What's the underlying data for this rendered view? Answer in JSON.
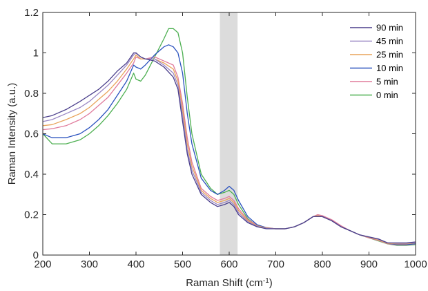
{
  "chart_data": {
    "type": "line",
    "title": "",
    "xlabel": "Raman Shift (cm",
    "xlabel_superscript": "-1",
    "xlabel_suffix": ")",
    "ylabel": "Raman Intensity (a.u.)",
    "xlim": [
      200,
      1000
    ],
    "ylim": [
      0,
      1.2
    ],
    "xticks": [
      "200",
      "300",
      "400",
      "500",
      "600",
      "700",
      "800",
      "900",
      "1000"
    ],
    "yticks": [
      "0",
      "0.2",
      "0.4",
      "0.6",
      "0.8",
      "1",
      "1.2"
    ],
    "grid": false,
    "legend_position": "top-right",
    "shaded_region": {
      "x_start": 580,
      "x_end": 618,
      "color": "#dcdcdc"
    },
    "series": [
      {
        "name": "90 min",
        "color": "#4b3f8c",
        "x": [
          200,
          220,
          250,
          280,
          300,
          320,
          340,
          360,
          380,
          395,
          400,
          410,
          420,
          440,
          460,
          480,
          490,
          500,
          510,
          520,
          540,
          560,
          575,
          590,
          600,
          610,
          620,
          640,
          660,
          680,
          700,
          720,
          740,
          760,
          780,
          790,
          800,
          820,
          840,
          860,
          880,
          900,
          920,
          940,
          960,
          980,
          1000
        ],
        "y": [
          0.68,
          0.69,
          0.72,
          0.76,
          0.79,
          0.82,
          0.86,
          0.91,
          0.95,
          1.0,
          1.0,
          0.98,
          0.97,
          0.96,
          0.93,
          0.88,
          0.82,
          0.66,
          0.5,
          0.4,
          0.3,
          0.26,
          0.24,
          0.25,
          0.26,
          0.24,
          0.2,
          0.16,
          0.14,
          0.13,
          0.13,
          0.13,
          0.14,
          0.16,
          0.19,
          0.19,
          0.19,
          0.17,
          0.14,
          0.12,
          0.1,
          0.09,
          0.08,
          0.06,
          0.06,
          0.06,
          0.065
        ]
      },
      {
        "name": "45 min",
        "color": "#9a87c4",
        "x": [
          200,
          220,
          250,
          280,
          300,
          320,
          340,
          360,
          380,
          395,
          400,
          410,
          420,
          440,
          460,
          480,
          490,
          500,
          510,
          520,
          540,
          560,
          575,
          590,
          600,
          610,
          620,
          640,
          660,
          680,
          700,
          720,
          740,
          760,
          780,
          790,
          800,
          820,
          840,
          860,
          880,
          900,
          920,
          940,
          960,
          980,
          1000
        ],
        "y": [
          0.66,
          0.67,
          0.7,
          0.73,
          0.76,
          0.8,
          0.84,
          0.89,
          0.94,
          0.99,
          1.0,
          0.98,
          0.97,
          0.97,
          0.94,
          0.9,
          0.84,
          0.69,
          0.52,
          0.42,
          0.31,
          0.27,
          0.25,
          0.26,
          0.27,
          0.25,
          0.21,
          0.165,
          0.142,
          0.132,
          0.13,
          0.13,
          0.14,
          0.16,
          0.19,
          0.19,
          0.19,
          0.17,
          0.14,
          0.12,
          0.1,
          0.09,
          0.078,
          0.06,
          0.058,
          0.058,
          0.062
        ]
      },
      {
        "name": "25 min",
        "color": "#e8a35a",
        "x": [
          200,
          220,
          250,
          280,
          300,
          320,
          340,
          360,
          380,
          395,
          400,
          410,
          420,
          440,
          460,
          480,
          490,
          500,
          510,
          520,
          540,
          560,
          575,
          590,
          600,
          610,
          620,
          640,
          660,
          680,
          700,
          720,
          740,
          760,
          780,
          790,
          800,
          820,
          840,
          860,
          880,
          900,
          920,
          940,
          960,
          980,
          1000
        ],
        "y": [
          0.64,
          0.645,
          0.67,
          0.7,
          0.73,
          0.77,
          0.81,
          0.86,
          0.92,
          0.97,
          0.99,
          0.97,
          0.97,
          0.97,
          0.95,
          0.92,
          0.86,
          0.72,
          0.55,
          0.44,
          0.32,
          0.28,
          0.26,
          0.27,
          0.28,
          0.26,
          0.22,
          0.17,
          0.145,
          0.134,
          0.13,
          0.13,
          0.14,
          0.16,
          0.19,
          0.195,
          0.19,
          0.17,
          0.14,
          0.12,
          0.1,
          0.088,
          0.075,
          0.058,
          0.055,
          0.055,
          0.06
        ]
      },
      {
        "name": "10 min",
        "color": "#2a52be",
        "x": [
          200,
          220,
          250,
          280,
          300,
          320,
          340,
          360,
          380,
          395,
          400,
          410,
          420,
          440,
          460,
          470,
          480,
          490,
          500,
          510,
          520,
          540,
          560,
          575,
          590,
          600,
          610,
          620,
          640,
          660,
          680,
          700,
          720,
          740,
          760,
          780,
          790,
          800,
          820,
          840,
          860,
          880,
          900,
          920,
          940,
          960,
          980,
          1000
        ],
        "y": [
          0.6,
          0.58,
          0.58,
          0.6,
          0.63,
          0.67,
          0.72,
          0.79,
          0.86,
          0.94,
          0.93,
          0.92,
          0.94,
          0.99,
          1.03,
          1.04,
          1.03,
          1.0,
          0.9,
          0.7,
          0.55,
          0.38,
          0.32,
          0.3,
          0.32,
          0.34,
          0.32,
          0.27,
          0.19,
          0.15,
          0.135,
          0.13,
          0.13,
          0.14,
          0.16,
          0.19,
          0.195,
          0.19,
          0.17,
          0.14,
          0.12,
          0.1,
          0.088,
          0.075,
          0.058,
          0.052,
          0.052,
          0.056
        ]
      },
      {
        "name": "5 min",
        "color": "#e07b9c",
        "x": [
          200,
          220,
          250,
          280,
          300,
          320,
          340,
          360,
          380,
          395,
          400,
          410,
          420,
          440,
          460,
          480,
          490,
          500,
          510,
          520,
          540,
          560,
          575,
          590,
          600,
          610,
          620,
          640,
          660,
          680,
          700,
          720,
          740,
          760,
          780,
          790,
          800,
          820,
          840,
          860,
          880,
          900,
          920,
          940,
          960,
          980,
          1000
        ],
        "y": [
          0.62,
          0.625,
          0.64,
          0.67,
          0.7,
          0.74,
          0.78,
          0.84,
          0.9,
          0.95,
          0.98,
          0.97,
          0.97,
          0.98,
          0.96,
          0.94,
          0.88,
          0.75,
          0.58,
          0.46,
          0.33,
          0.29,
          0.27,
          0.28,
          0.29,
          0.27,
          0.23,
          0.175,
          0.148,
          0.136,
          0.13,
          0.13,
          0.14,
          0.16,
          0.19,
          0.2,
          0.195,
          0.175,
          0.145,
          0.12,
          0.1,
          0.085,
          0.072,
          0.056,
          0.05,
          0.05,
          0.055
        ]
      },
      {
        "name": "0 min",
        "color": "#4caf50",
        "x": [
          200,
          220,
          250,
          280,
          300,
          320,
          340,
          360,
          380,
          395,
          400,
          410,
          420,
          440,
          460,
          470,
          480,
          490,
          500,
          510,
          520,
          540,
          560,
          575,
          590,
          600,
          610,
          620,
          640,
          660,
          680,
          700,
          720,
          740,
          760,
          780,
          790,
          800,
          820,
          840,
          860,
          880,
          900,
          920,
          940,
          960,
          980,
          1000
        ],
        "y": [
          0.6,
          0.55,
          0.55,
          0.57,
          0.6,
          0.64,
          0.69,
          0.75,
          0.82,
          0.9,
          0.87,
          0.86,
          0.89,
          0.98,
          1.07,
          1.12,
          1.12,
          1.1,
          1.0,
          0.78,
          0.6,
          0.4,
          0.33,
          0.3,
          0.31,
          0.32,
          0.3,
          0.25,
          0.18,
          0.145,
          0.133,
          0.13,
          0.13,
          0.14,
          0.16,
          0.19,
          0.195,
          0.19,
          0.17,
          0.14,
          0.12,
          0.1,
          0.085,
          0.07,
          0.055,
          0.048,
          0.048,
          0.052
        ]
      }
    ]
  }
}
